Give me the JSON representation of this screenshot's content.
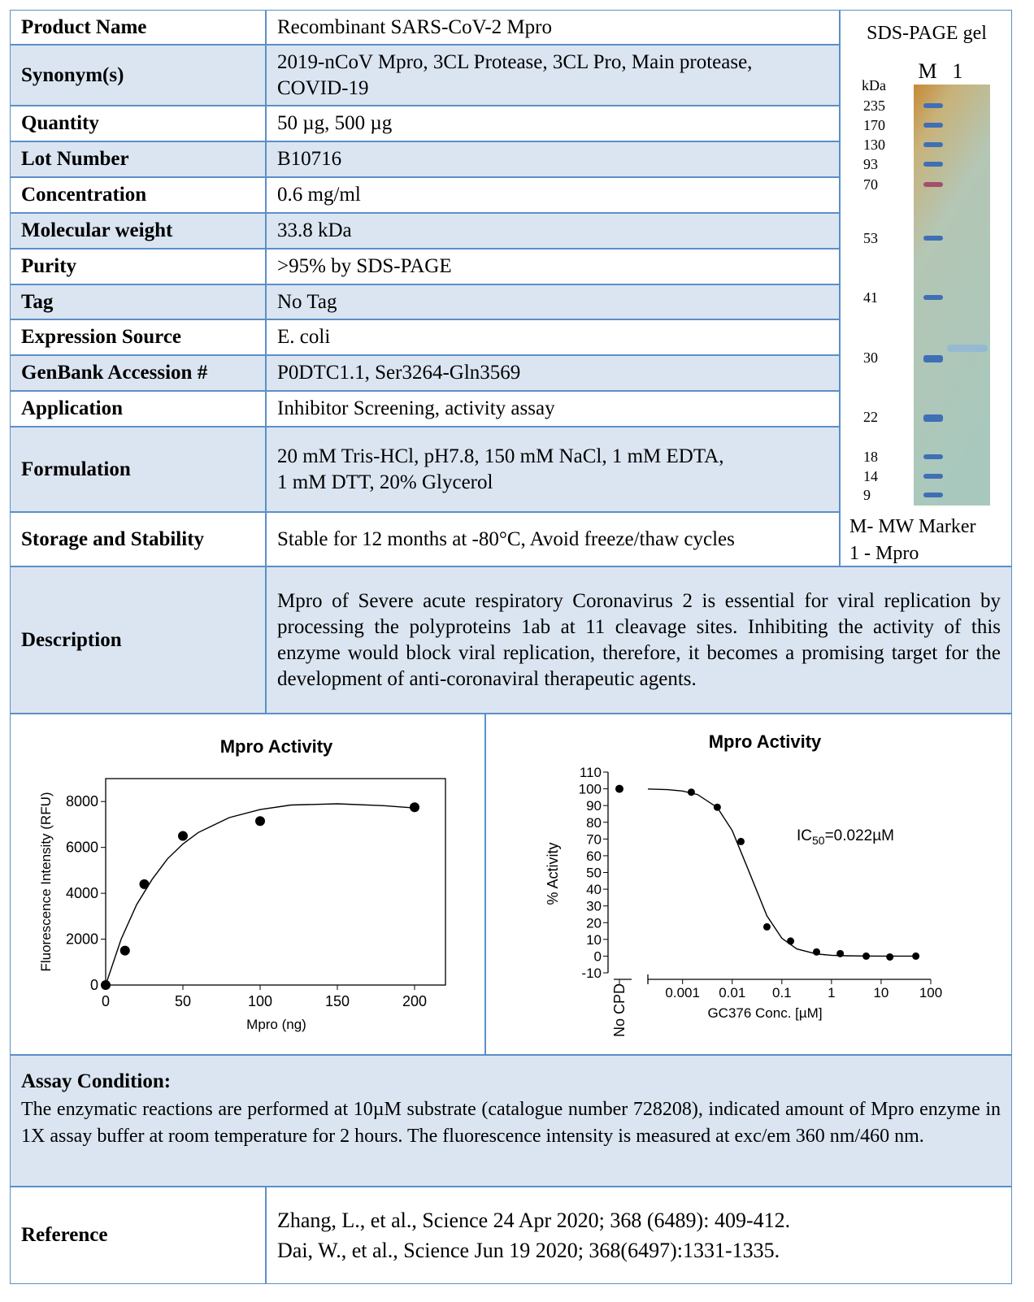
{
  "table": {
    "rows": [
      {
        "label": "Product Name",
        "value": "Recombinant SARS-CoV-2 Mpro"
      },
      {
        "label": "Synonym(s)",
        "value": [
          "2019-nCoV Mpro, 3CL Protease, 3CL Pro, Main protease,",
          "COVID-19"
        ]
      },
      {
        "label": "Quantity",
        "value": "50 µg, 500 µg"
      },
      {
        "label": "Lot Number",
        "value": "B10716"
      },
      {
        "label": "Concentration",
        "value": "0.6 mg/ml"
      },
      {
        "label": "Molecular weight",
        "value": "33.8 kDa"
      },
      {
        "label": "Purity",
        "value": ">95% by SDS-PAGE"
      },
      {
        "label": "Tag",
        "value": "No Tag"
      },
      {
        "label": "Expression Source",
        "value": "E. coli"
      },
      {
        "label": "GenBank Accession #",
        "value": "P0DTC1.1, Ser3264-Gln3569"
      },
      {
        "label": "Application",
        "value": "Inhibitor Screening, activity assay"
      },
      {
        "label": "Formulation",
        "value": [
          "20 mM Tris-HCl, pH7.8, 150 mM NaCl, 1 mM EDTA,",
          "1 mM DTT, 20% Glycerol"
        ]
      },
      {
        "label": "Storage and Stability",
        "value": "Stable for 12 months at -80°C, Avoid freeze/thaw cycles"
      }
    ]
  },
  "gel": {
    "title": "SDS-PAGE gel",
    "lanes": [
      "M",
      "1"
    ],
    "unit": "kDa",
    "markers": [
      235,
      170,
      130,
      93,
      70,
      53,
      41,
      30,
      22,
      18,
      14,
      9
    ],
    "legend": [
      "M- MW Marker",
      "1 - Mpro"
    ]
  },
  "description": {
    "label": "Description",
    "text": "Mpro of Severe acute respiratory Coronavirus 2 is essential for viral replication by processing the polyproteins 1ab at 11 cleavage sites.  Inhibiting the activity of this enzyme would block viral replication, therefore, it becomes a promising target for the development of anti-coronaviral therapeutic agents."
  },
  "chart_data": [
    {
      "type": "scatter",
      "title": "Mpro Activity",
      "x_label": "Mpro (ng)",
      "y_label": "Fluorescence Intensity (RFU)",
      "xlim": [
        0,
        220
      ],
      "xticks": [
        0,
        50,
        100,
        150,
        200
      ],
      "ylim": [
        0,
        9000
      ],
      "yticks": [
        0,
        2000,
        4000,
        6000,
        8000
      ],
      "color": "#000000",
      "points": {
        "x": [
          0,
          12.5,
          25,
          50,
          100,
          200
        ],
        "values": [
          0,
          1500,
          4400,
          6500,
          7150,
          7750
        ]
      },
      "fit": {
        "x": [
          0,
          10,
          20,
          30,
          40,
          50,
          60,
          80,
          100,
          120,
          150,
          180,
          200
        ],
        "values": [
          0,
          2000,
          3500,
          4600,
          5500,
          6150,
          6650,
          7300,
          7650,
          7850,
          7900,
          7820,
          7720
        ]
      }
    },
    {
      "type": "scatter",
      "title": "Mpro Activity",
      "x_label": "GC376 Conc. [µM]",
      "y_label": "% Activity",
      "log_x": true,
      "xlim": [
        0.0002,
        100
      ],
      "xticks": [
        0.001,
        0.01,
        0.1,
        1,
        10,
        100
      ],
      "ylim": [
        -10,
        110
      ],
      "yticks": [
        -10,
        0,
        10,
        20,
        30,
        40,
        50,
        60,
        70,
        80,
        90,
        100,
        110
      ],
      "color": "#000000",
      "control": {
        "label": "No CPD",
        "value": 100,
        "error": 1.5
      },
      "points": {
        "x": [
          0.0015,
          0.005,
          0.015,
          0.05,
          0.15,
          0.5,
          1.5,
          5,
          15,
          50
        ],
        "values": [
          98,
          89,
          68.5,
          17.5,
          9,
          2.5,
          1.5,
          0,
          -0.5,
          0
        ],
        "errors": [
          1.5,
          1.5,
          0.8,
          1.5,
          0.8,
          0.8,
          0.8,
          0.8,
          0.8,
          0.8
        ]
      },
      "fit": {
        "x": [
          0.0002,
          0.0005,
          0.001,
          0.002,
          0.005,
          0.01,
          0.02,
          0.05,
          0.1,
          0.2,
          0.5,
          1,
          2,
          5,
          10,
          50
        ],
        "values": [
          99.9,
          99.5,
          98.7,
          96.6,
          88.8,
          75.1,
          53.3,
          24.1,
          10.7,
          4.3,
          1.25,
          0.5,
          0.2,
          0.05,
          0.02,
          0
        ]
      },
      "annotation": {
        "text": "IC",
        "subscript": "50",
        "suffix": "=0.022µM"
      }
    }
  ],
  "assay": {
    "title": "Assay Condition:",
    "text": "The enzymatic reactions are performed at 10µM substrate (catalogue number 728208), indicated amount of Mpro enzyme in 1X assay buffer at room temperature for 2 hours. The fluorescence intensity is measured at exc/em 360 nm/460 nm."
  },
  "reference": {
    "label": "Reference",
    "lines": [
      "Zhang, L., et al., Science 24 Apr 2020; 368 (6489): 409-412.",
      "Dai, W., et al., Science Jun 19 2020; 368(6497):1331-1335."
    ]
  }
}
